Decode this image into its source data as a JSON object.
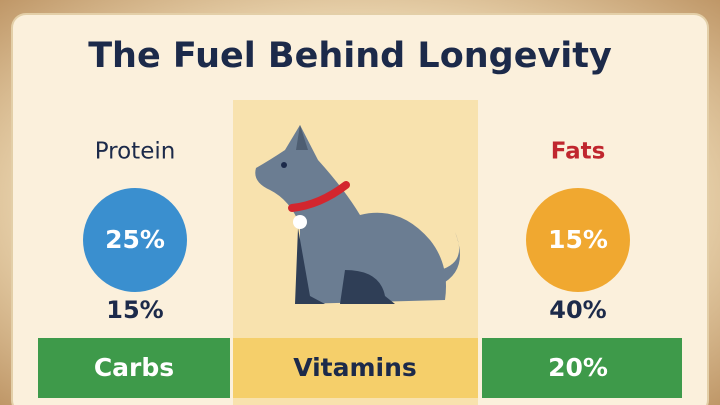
{
  "title": "The Fuel Behind Longevity",
  "columns": [
    {
      "heading": "Protein",
      "circle": "25%",
      "value": "15%",
      "bar": "Carbs"
    },
    {
      "bar": "Vitamins"
    },
    {
      "heading": "Fats",
      "circle": "15%",
      "value": "40%",
      "bar": "20%"
    }
  ]
}
